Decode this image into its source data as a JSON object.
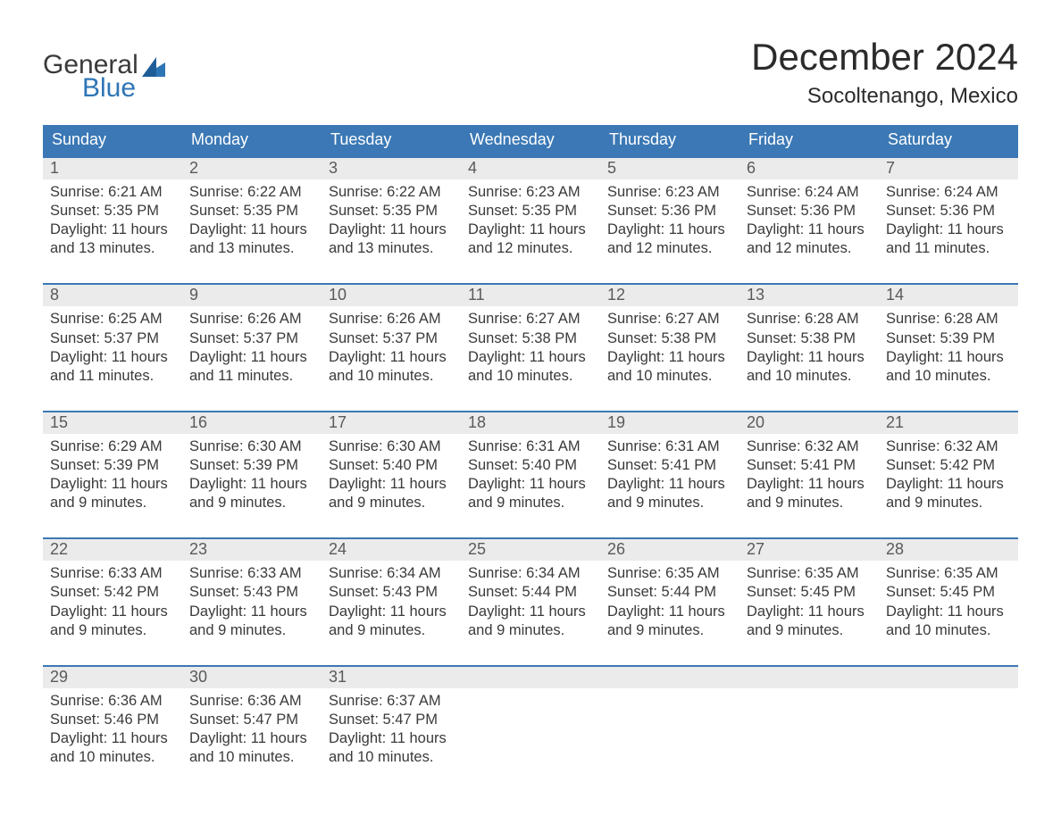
{
  "brand": {
    "word1": "General",
    "word2": "Blue",
    "text_color": "#3a3a3a",
    "accent_color": "#2e75b6"
  },
  "title": {
    "month": "December 2024",
    "location": "Socoltenango, Mexico",
    "title_fontsize": 42,
    "location_fontsize": 24,
    "text_color": "#2b2b2b"
  },
  "calendar": {
    "header_bg": "#3b78b5",
    "header_text_color": "#ffffff",
    "row_border_color": "#3b78b5",
    "daynum_bg": "#ebebeb",
    "daynum_color": "#5a5a5a",
    "body_text_color": "#3a3a3a",
    "background_color": "#ffffff",
    "days_of_week": [
      "Sunday",
      "Monday",
      "Tuesday",
      "Wednesday",
      "Thursday",
      "Friday",
      "Saturday"
    ],
    "weeks": [
      [
        {
          "n": "1",
          "sunrise": "Sunrise: 6:21 AM",
          "sunset": "Sunset: 5:35 PM",
          "daylight": "Daylight: 11 hours and 13 minutes."
        },
        {
          "n": "2",
          "sunrise": "Sunrise: 6:22 AM",
          "sunset": "Sunset: 5:35 PM",
          "daylight": "Daylight: 11 hours and 13 minutes."
        },
        {
          "n": "3",
          "sunrise": "Sunrise: 6:22 AM",
          "sunset": "Sunset: 5:35 PM",
          "daylight": "Daylight: 11 hours and 13 minutes."
        },
        {
          "n": "4",
          "sunrise": "Sunrise: 6:23 AM",
          "sunset": "Sunset: 5:35 PM",
          "daylight": "Daylight: 11 hours and 12 minutes."
        },
        {
          "n": "5",
          "sunrise": "Sunrise: 6:23 AM",
          "sunset": "Sunset: 5:36 PM",
          "daylight": "Daylight: 11 hours and 12 minutes."
        },
        {
          "n": "6",
          "sunrise": "Sunrise: 6:24 AM",
          "sunset": "Sunset: 5:36 PM",
          "daylight": "Daylight: 11 hours and 12 minutes."
        },
        {
          "n": "7",
          "sunrise": "Sunrise: 6:24 AM",
          "sunset": "Sunset: 5:36 PM",
          "daylight": "Daylight: 11 hours and 11 minutes."
        }
      ],
      [
        {
          "n": "8",
          "sunrise": "Sunrise: 6:25 AM",
          "sunset": "Sunset: 5:37 PM",
          "daylight": "Daylight: 11 hours and 11 minutes."
        },
        {
          "n": "9",
          "sunrise": "Sunrise: 6:26 AM",
          "sunset": "Sunset: 5:37 PM",
          "daylight": "Daylight: 11 hours and 11 minutes."
        },
        {
          "n": "10",
          "sunrise": "Sunrise: 6:26 AM",
          "sunset": "Sunset: 5:37 PM",
          "daylight": "Daylight: 11 hours and 10 minutes."
        },
        {
          "n": "11",
          "sunrise": "Sunrise: 6:27 AM",
          "sunset": "Sunset: 5:38 PM",
          "daylight": "Daylight: 11 hours and 10 minutes."
        },
        {
          "n": "12",
          "sunrise": "Sunrise: 6:27 AM",
          "sunset": "Sunset: 5:38 PM",
          "daylight": "Daylight: 11 hours and 10 minutes."
        },
        {
          "n": "13",
          "sunrise": "Sunrise: 6:28 AM",
          "sunset": "Sunset: 5:38 PM",
          "daylight": "Daylight: 11 hours and 10 minutes."
        },
        {
          "n": "14",
          "sunrise": "Sunrise: 6:28 AM",
          "sunset": "Sunset: 5:39 PM",
          "daylight": "Daylight: 11 hours and 10 minutes."
        }
      ],
      [
        {
          "n": "15",
          "sunrise": "Sunrise: 6:29 AM",
          "sunset": "Sunset: 5:39 PM",
          "daylight": "Daylight: 11 hours and 9 minutes."
        },
        {
          "n": "16",
          "sunrise": "Sunrise: 6:30 AM",
          "sunset": "Sunset: 5:39 PM",
          "daylight": "Daylight: 11 hours and 9 minutes."
        },
        {
          "n": "17",
          "sunrise": "Sunrise: 6:30 AM",
          "sunset": "Sunset: 5:40 PM",
          "daylight": "Daylight: 11 hours and 9 minutes."
        },
        {
          "n": "18",
          "sunrise": "Sunrise: 6:31 AM",
          "sunset": "Sunset: 5:40 PM",
          "daylight": "Daylight: 11 hours and 9 minutes."
        },
        {
          "n": "19",
          "sunrise": "Sunrise: 6:31 AM",
          "sunset": "Sunset: 5:41 PM",
          "daylight": "Daylight: 11 hours and 9 minutes."
        },
        {
          "n": "20",
          "sunrise": "Sunrise: 6:32 AM",
          "sunset": "Sunset: 5:41 PM",
          "daylight": "Daylight: 11 hours and 9 minutes."
        },
        {
          "n": "21",
          "sunrise": "Sunrise: 6:32 AM",
          "sunset": "Sunset: 5:42 PM",
          "daylight": "Daylight: 11 hours and 9 minutes."
        }
      ],
      [
        {
          "n": "22",
          "sunrise": "Sunrise: 6:33 AM",
          "sunset": "Sunset: 5:42 PM",
          "daylight": "Daylight: 11 hours and 9 minutes."
        },
        {
          "n": "23",
          "sunrise": "Sunrise: 6:33 AM",
          "sunset": "Sunset: 5:43 PM",
          "daylight": "Daylight: 11 hours and 9 minutes."
        },
        {
          "n": "24",
          "sunrise": "Sunrise: 6:34 AM",
          "sunset": "Sunset: 5:43 PM",
          "daylight": "Daylight: 11 hours and 9 minutes."
        },
        {
          "n": "25",
          "sunrise": "Sunrise: 6:34 AM",
          "sunset": "Sunset: 5:44 PM",
          "daylight": "Daylight: 11 hours and 9 minutes."
        },
        {
          "n": "26",
          "sunrise": "Sunrise: 6:35 AM",
          "sunset": "Sunset: 5:44 PM",
          "daylight": "Daylight: 11 hours and 9 minutes."
        },
        {
          "n": "27",
          "sunrise": "Sunrise: 6:35 AM",
          "sunset": "Sunset: 5:45 PM",
          "daylight": "Daylight: 11 hours and 9 minutes."
        },
        {
          "n": "28",
          "sunrise": "Sunrise: 6:35 AM",
          "sunset": "Sunset: 5:45 PM",
          "daylight": "Daylight: 11 hours and 10 minutes."
        }
      ],
      [
        {
          "n": "29",
          "sunrise": "Sunrise: 6:36 AM",
          "sunset": "Sunset: 5:46 PM",
          "daylight": "Daylight: 11 hours and 10 minutes."
        },
        {
          "n": "30",
          "sunrise": "Sunrise: 6:36 AM",
          "sunset": "Sunset: 5:47 PM",
          "daylight": "Daylight: 11 hours and 10 minutes."
        },
        {
          "n": "31",
          "sunrise": "Sunrise: 6:37 AM",
          "sunset": "Sunset: 5:47 PM",
          "daylight": "Daylight: 11 hours and 10 minutes."
        },
        {
          "n": "",
          "sunrise": "",
          "sunset": "",
          "daylight": ""
        },
        {
          "n": "",
          "sunrise": "",
          "sunset": "",
          "daylight": ""
        },
        {
          "n": "",
          "sunrise": "",
          "sunset": "",
          "daylight": ""
        },
        {
          "n": "",
          "sunrise": "",
          "sunset": "",
          "daylight": ""
        }
      ]
    ]
  }
}
